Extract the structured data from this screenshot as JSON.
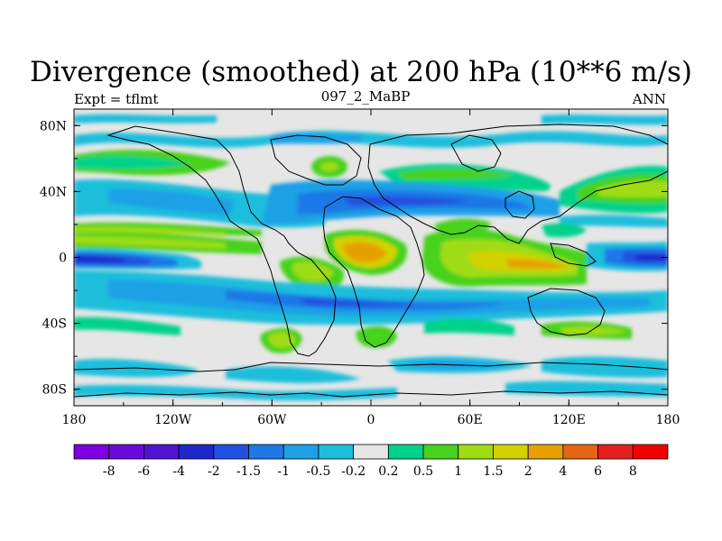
{
  "title": "Divergence (smoothed) at 200 hPa (10**6 m/s)",
  "left_string": "Expt = tflmt",
  "center_string": "097_2_MaBP",
  "right_string": "ANN",
  "chart_data": {
    "type": "heatmap",
    "title": "Divergence (smoothed) at 200 hPa (10**6 m/s)",
    "subtitle": "097_2_MaBP",
    "variable": "Divergence (smoothed)",
    "level": "200 hPa",
    "units": "10**6 m/s",
    "x_ticks": [
      "180",
      "120W",
      "60W",
      "0",
      "60E",
      "120E",
      "180"
    ],
    "y_ticks": [
      "80N",
      "40N",
      "0",
      "40S",
      "80S"
    ],
    "xlim": [
      -180,
      180
    ],
    "ylim": [
      -90,
      90
    ],
    "levels": [
      "-8",
      "-6",
      "-4",
      "-2",
      "-1.5",
      "-1",
      "-0.5",
      "-0.2",
      "0.2",
      "0.5",
      "1",
      "1.5",
      "2",
      "4",
      "6",
      "8"
    ],
    "colors": [
      "#7f00e0",
      "#6a0ad8",
      "#5014d0",
      "#1e28c8",
      "#2050e0",
      "#1e78e6",
      "#1ea0e6",
      "#1ebedc",
      "#e6e6e6",
      "#00d28c",
      "#46d21e",
      "#a0dc14",
      "#d2d200",
      "#e6a000",
      "#e66414",
      "#e61e1e",
      "#f00000"
    ],
    "bands": [
      {
        "lat": 72,
        "lon": [
          -180,
          180
        ],
        "value": -0.6,
        "note": "arctic blue streaks"
      },
      {
        "lat": 60,
        "lon": [
          -180,
          -100
        ],
        "value": 0.8,
        "note": "N Pacific green"
      },
      {
        "lat": 52,
        "lon": [
          -20,
          80
        ],
        "value": 0.5,
        "note": "Eurasia green"
      },
      {
        "lat": 35,
        "lon": [
          -180,
          -90
        ],
        "value": -0.8,
        "note": "N Pacific blue"
      },
      {
        "lat": 33,
        "lon": [
          -80,
          110
        ],
        "value": -1.2,
        "note": "N Atlantic/Asia blue"
      },
      {
        "lat": 38,
        "lon": [
          120,
          180
        ],
        "value": 0.7,
        "note": "NW Pacific green"
      },
      {
        "lat": 12,
        "lon": [
          -180,
          -110
        ],
        "value": 1.5,
        "note": "ITCZ Pacific"
      },
      {
        "lat": 0,
        "lon": [
          -180,
          -120
        ],
        "value": -2.0,
        "note": "central Pacific blue"
      },
      {
        "lat": 0,
        "lon": [
          145,
          180
        ],
        "value": -2.0,
        "note": "western Pacific blue"
      },
      {
        "lat": 5,
        "lon": [
          -40,
          -5
        ],
        "value": 2.5,
        "note": "Africa west orange"
      },
      {
        "lat": -5,
        "lon": [
          60,
          160
        ],
        "value": 2.0,
        "note": "Indian Ocean/Maritime orange"
      },
      {
        "lat": -20,
        "lon": [
          -180,
          180
        ],
        "value": -1.0,
        "note": "southern subtropics blue"
      },
      {
        "lat": -45,
        "lon": [
          -180,
          180
        ],
        "value": 0.6,
        "note": "southern midlatitudes green"
      },
      {
        "lat": -65,
        "lon": [
          -180,
          180
        ],
        "value": -0.5,
        "note": "Antarctic blue"
      }
    ]
  }
}
